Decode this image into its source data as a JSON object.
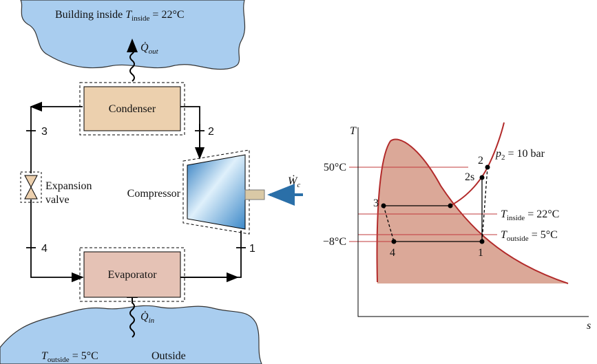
{
  "building": {
    "label": "Building inside",
    "temp_symbol": "T",
    "temp_sub": "inside",
    "temp_value": "= 22°C"
  },
  "q_out": {
    "symbol": "Q̇",
    "sub": "out"
  },
  "condenser": "Condenser",
  "compressor": "Compressor",
  "work": {
    "symbol": "Ẇ",
    "sub": "c"
  },
  "expansion_valve": [
    "Expansion",
    "valve"
  ],
  "evaporator": "Evaporator",
  "q_in": {
    "symbol": "Q̇",
    "sub": "in"
  },
  "outside": {
    "temp_symbol": "T",
    "temp_sub": "outside",
    "temp_value": "= 5°C",
    "label": "Outside"
  },
  "cycle_states": [
    "1",
    "2",
    "3",
    "4"
  ],
  "ts_diagram": {
    "y_axis": "T",
    "x_axis": "s",
    "temp_labels": [
      "50°C",
      "−8°C"
    ],
    "pressure": {
      "symbol": "p",
      "sub": "2",
      "value": "= 10 bar"
    },
    "points": [
      "1",
      "2",
      "2s",
      "3",
      "4"
    ],
    "t_inside": {
      "symbol": "T",
      "sub": "inside",
      "value": "= 22°C"
    },
    "t_outside": {
      "symbol": "T",
      "sub": "outside",
      "value": "= 5°C"
    }
  }
}
